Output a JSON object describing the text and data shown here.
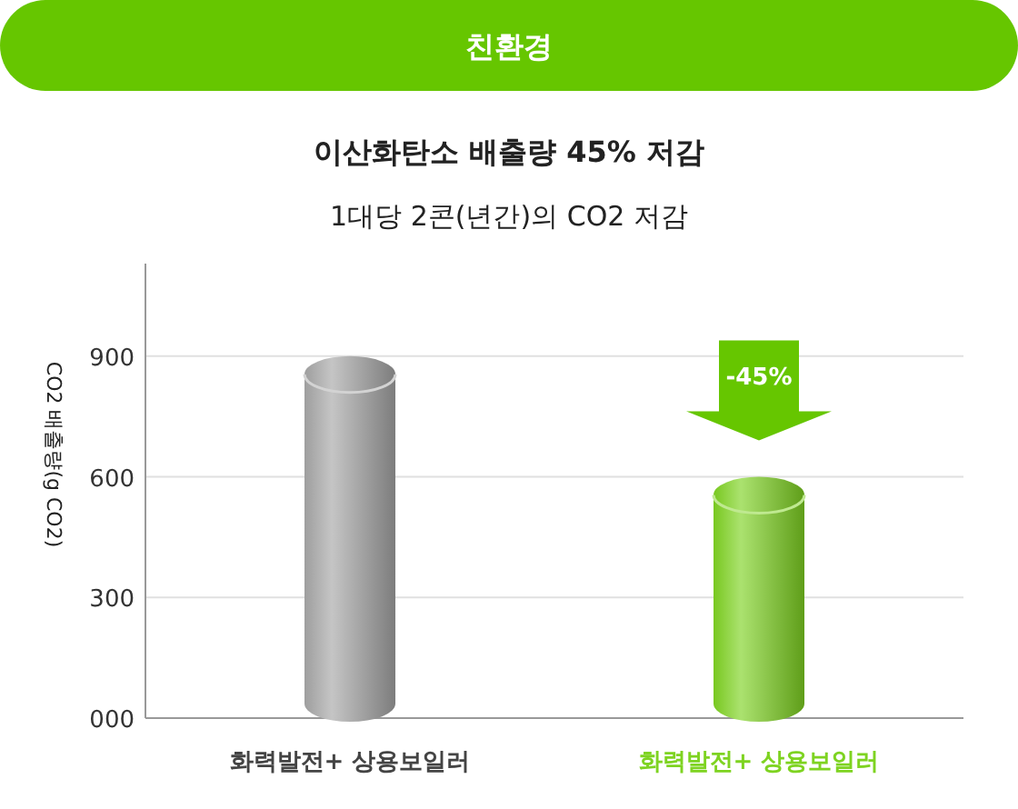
{
  "chart_data": {
    "type": "bar",
    "title": "친환경",
    "subtitle": "이산화탄소 배출량 45% 저감",
    "annotations": [
      "1대당 2콘(년간)의 CO2 저감",
      "-45%"
    ],
    "ylabel": "CO2 배출량(g CO2)",
    "categories": [
      "화력발전+ 상용보일러",
      "화력발전+ 상용보일러"
    ],
    "values": [
      900,
      600
    ],
    "colors": [
      "#a6a6a6",
      "#7ed321"
    ],
    "ylim": [
      0,
      1130
    ],
    "yticks": [
      {
        "value": 0,
        "label": "000"
      },
      300,
      600,
      900
    ],
    "grid": "y"
  }
}
